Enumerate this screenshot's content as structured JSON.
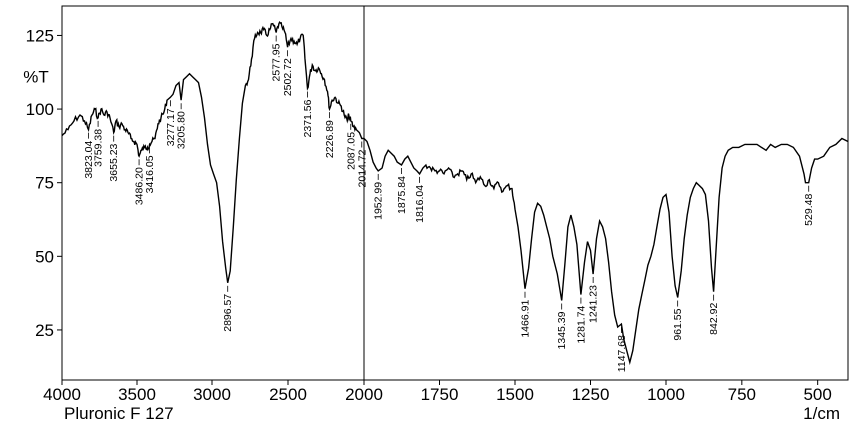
{
  "chart_data": {
    "type": "line",
    "title": "",
    "xlabel": "1/cm",
    "ylabel": "%T",
    "sample_label": "Pluronic F 127",
    "xlim": [
      4000,
      400
    ],
    "ylim": [
      8,
      135
    ],
    "x_ticks": [
      4000,
      3500,
      3000,
      2500,
      2000,
      1750,
      1500,
      1250,
      1000,
      750,
      500
    ],
    "x_tick_labels": [
      "4000",
      "3500",
      "3000",
      "2500",
      "2000",
      "1750",
      "1500",
      "1250",
      "1000",
      "750",
      "500"
    ],
    "y_ticks": [
      25,
      50,
      75,
      100,
      125
    ],
    "y_tick_labels": [
      "25",
      "50",
      "75",
      "100",
      "125"
    ],
    "divider_x": 2000,
    "line_color": "#000000",
    "series": [
      {
        "values_xy": [
          [
            4000,
            91
          ],
          [
            3960,
            93
          ],
          [
            3920,
            96
          ],
          [
            3880,
            98
          ],
          [
            3850,
            96
          ],
          [
            3823.04,
            93
          ],
          [
            3800,
            98
          ],
          [
            3780,
            100
          ],
          [
            3759.38,
            97
          ],
          [
            3740,
            100
          ],
          [
            3720,
            98
          ],
          [
            3700,
            99
          ],
          [
            3680,
            97
          ],
          [
            3655.23,
            92
          ],
          [
            3640,
            96
          ],
          [
            3620,
            94
          ],
          [
            3600,
            95
          ],
          [
            3580,
            93
          ],
          [
            3560,
            92
          ],
          [
            3540,
            90
          ],
          [
            3520,
            89
          ],
          [
            3500,
            88
          ],
          [
            3486.2,
            84
          ],
          [
            3470,
            86
          ],
          [
            3450,
            87
          ],
          [
            3430,
            87
          ],
          [
            3416.05,
            88
          ],
          [
            3400,
            89
          ],
          [
            3380,
            90
          ],
          [
            3360,
            95
          ],
          [
            3340,
            97
          ],
          [
            3320,
            99
          ],
          [
            3300,
            103
          ],
          [
            3277.17,
            104
          ],
          [
            3260,
            105
          ],
          [
            3240,
            108
          ],
          [
            3220,
            109
          ],
          [
            3205.8,
            103
          ],
          [
            3190,
            110
          ],
          [
            3170,
            111
          ],
          [
            3150,
            112
          ],
          [
            3130,
            111
          ],
          [
            3110,
            110
          ],
          [
            3090,
            109
          ],
          [
            3070,
            104
          ],
          [
            3050,
            97
          ],
          [
            3030,
            88
          ],
          [
            3010,
            81
          ],
          [
            2990,
            78
          ],
          [
            2970,
            75
          ],
          [
            2950,
            67
          ],
          [
            2930,
            55
          ],
          [
            2910,
            46
          ],
          [
            2896.57,
            41
          ],
          [
            2880,
            45
          ],
          [
            2860,
            60
          ],
          [
            2840,
            76
          ],
          [
            2820,
            90
          ],
          [
            2800,
            102
          ],
          [
            2780,
            108
          ],
          [
            2760,
            110
          ],
          [
            2740,
            117
          ],
          [
            2720,
            124
          ],
          [
            2700,
            126
          ],
          [
            2680,
            126
          ],
          [
            2660,
            127
          ],
          [
            2640,
            125
          ],
          [
            2620,
            127
          ],
          [
            2600,
            129
          ],
          [
            2577.95,
            126
          ],
          [
            2560,
            129
          ],
          [
            2540,
            128
          ],
          [
            2520,
            126
          ],
          [
            2502.72,
            121
          ],
          [
            2480,
            124
          ],
          [
            2460,
            123
          ],
          [
            2440,
            122
          ],
          [
            2420,
            124
          ],
          [
            2400,
            125
          ],
          [
            2385,
            115
          ],
          [
            2371.56,
            107
          ],
          [
            2355,
            112
          ],
          [
            2340,
            115
          ],
          [
            2320,
            113
          ],
          [
            2300,
            114
          ],
          [
            2280,
            112
          ],
          [
            2260,
            110
          ],
          [
            2240,
            106
          ],
          [
            2226.89,
            100
          ],
          [
            2210,
            103
          ],
          [
            2190,
            104
          ],
          [
            2170,
            102
          ],
          [
            2150,
            101
          ],
          [
            2130,
            98
          ],
          [
            2110,
            96
          ],
          [
            2100,
            98
          ],
          [
            2087.05,
            96
          ],
          [
            2070,
            94
          ],
          [
            2050,
            93
          ],
          [
            2030,
            92
          ],
          [
            2014.72,
            90
          ],
          [
            2000,
            90
          ],
          [
            1990,
            89
          ],
          [
            1980,
            86
          ],
          [
            1970,
            82
          ],
          [
            1960,
            80
          ],
          [
            1952.99,
            79
          ],
          [
            1940,
            80
          ],
          [
            1930,
            84
          ],
          [
            1920,
            86
          ],
          [
            1910,
            85
          ],
          [
            1900,
            84
          ],
          [
            1890,
            82
          ],
          [
            1875.84,
            81
          ],
          [
            1865,
            83
          ],
          [
            1855,
            84
          ],
          [
            1845,
            82
          ],
          [
            1835,
            80
          ],
          [
            1825,
            79
          ],
          [
            1816.04,
            78
          ],
          [
            1805,
            80
          ],
          [
            1795,
            81
          ],
          [
            1780,
            80
          ],
          [
            1765,
            79
          ],
          [
            1750,
            79
          ],
          [
            1735,
            78
          ],
          [
            1720,
            80
          ],
          [
            1705,
            77
          ],
          [
            1690,
            78
          ],
          [
            1675,
            79
          ],
          [
            1660,
            76
          ],
          [
            1645,
            78
          ],
          [
            1630,
            75
          ],
          [
            1615,
            77
          ],
          [
            1600,
            74
          ],
          [
            1585,
            76
          ],
          [
            1570,
            73
          ],
          [
            1555,
            75
          ],
          [
            1540,
            72
          ],
          [
            1525,
            74
          ],
          [
            1510,
            73
          ],
          [
            1500,
            66
          ],
          [
            1490,
            60
          ],
          [
            1480,
            52
          ],
          [
            1466.91,
            39
          ],
          [
            1455,
            46
          ],
          [
            1445,
            56
          ],
          [
            1435,
            65
          ],
          [
            1425,
            68
          ],
          [
            1415,
            67
          ],
          [
            1405,
            64
          ],
          [
            1395,
            60
          ],
          [
            1385,
            56
          ],
          [
            1375,
            50
          ],
          [
            1360,
            44
          ],
          [
            1345.39,
            35
          ],
          [
            1335,
            47
          ],
          [
            1325,
            60
          ],
          [
            1315,
            64
          ],
          [
            1305,
            60
          ],
          [
            1295,
            54
          ],
          [
            1281.74,
            37
          ],
          [
            1270,
            48
          ],
          [
            1260,
            55
          ],
          [
            1250,
            52
          ],
          [
            1241.23,
            44
          ],
          [
            1230,
            56
          ],
          [
            1220,
            62
          ],
          [
            1210,
            60
          ],
          [
            1200,
            56
          ],
          [
            1190,
            48
          ],
          [
            1180,
            38
          ],
          [
            1170,
            30
          ],
          [
            1160,
            26
          ],
          [
            1147.68,
            27
          ],
          [
            1140,
            22
          ],
          [
            1130,
            18
          ],
          [
            1120,
            14
          ],
          [
            1110,
            18
          ],
          [
            1100,
            25
          ],
          [
            1090,
            32
          ],
          [
            1080,
            37
          ],
          [
            1070,
            42
          ],
          [
            1060,
            47
          ],
          [
            1050,
            50
          ],
          [
            1040,
            54
          ],
          [
            1030,
            60
          ],
          [
            1020,
            66
          ],
          [
            1010,
            70
          ],
          [
            1000,
            71
          ],
          [
            990,
            65
          ],
          [
            980,
            50
          ],
          [
            970,
            40
          ],
          [
            961.55,
            36
          ],
          [
            950,
            45
          ],
          [
            940,
            56
          ],
          [
            930,
            64
          ],
          [
            920,
            70
          ],
          [
            910,
            73
          ],
          [
            900,
            75
          ],
          [
            890,
            74
          ],
          [
            880,
            73
          ],
          [
            870,
            71
          ],
          [
            860,
            62
          ],
          [
            850,
            46
          ],
          [
            842.92,
            38
          ],
          [
            835,
            52
          ],
          [
            825,
            70
          ],
          [
            815,
            80
          ],
          [
            805,
            84
          ],
          [
            795,
            86
          ],
          [
            780,
            87
          ],
          [
            760,
            87
          ],
          [
            740,
            88
          ],
          [
            720,
            88
          ],
          [
            700,
            88
          ],
          [
            685,
            87
          ],
          [
            670,
            86
          ],
          [
            655,
            88
          ],
          [
            640,
            87
          ],
          [
            620,
            88
          ],
          [
            600,
            88
          ],
          [
            580,
            87
          ],
          [
            560,
            84
          ],
          [
            545,
            78
          ],
          [
            540,
            75
          ],
          [
            529.48,
            75
          ],
          [
            520,
            80
          ],
          [
            510,
            83
          ],
          [
            500,
            83
          ],
          [
            480,
            84
          ],
          [
            460,
            87
          ],
          [
            440,
            88
          ],
          [
            420,
            90
          ],
          [
            400,
            89
          ]
        ]
      }
    ],
    "peak_labels": [
      {
        "x": 3823.04,
        "y": 93,
        "text": "3823.04"
      },
      {
        "x": 3759.38,
        "y": 97,
        "text": "3759.38"
      },
      {
        "x": 3655.23,
        "y": 92,
        "text": "3655.23"
      },
      {
        "x": 3486.2,
        "y": 84,
        "text": "3486.20"
      },
      {
        "x": 3416.05,
        "y": 88,
        "text": "3416.05"
      },
      {
        "x": 3277.17,
        "y": 104,
        "text": "3277.17"
      },
      {
        "x": 3205.8,
        "y": 103,
        "text": "3205.80"
      },
      {
        "x": 2896.57,
        "y": 41,
        "text": "2896.57"
      },
      {
        "x": 2577.95,
        "y": 126,
        "text": "2577.95"
      },
      {
        "x": 2502.72,
        "y": 121,
        "text": "2502.72"
      },
      {
        "x": 2371.56,
        "y": 107,
        "text": "2371.56"
      },
      {
        "x": 2226.89,
        "y": 100,
        "text": "2226.89"
      },
      {
        "x": 2087.05,
        "y": 96,
        "text": "2087.05"
      },
      {
        "x": 2014.72,
        "y": 90,
        "text": "2014.72"
      },
      {
        "x": 1952.99,
        "y": 79,
        "text": "1952.99"
      },
      {
        "x": 1875.84,
        "y": 81,
        "text": "1875.84"
      },
      {
        "x": 1816.04,
        "y": 78,
        "text": "1816.04"
      },
      {
        "x": 1466.91,
        "y": 39,
        "text": "1466.91"
      },
      {
        "x": 1345.39,
        "y": 35,
        "text": "1345.39"
      },
      {
        "x": 1281.74,
        "y": 37,
        "text": "1281.74"
      },
      {
        "x": 1241.23,
        "y": 44,
        "text": "1241.23"
      },
      {
        "x": 1147.68,
        "y": 27,
        "text": "1147.68"
      },
      {
        "x": 961.55,
        "y": 36,
        "text": "961.55"
      },
      {
        "x": 842.92,
        "y": 38,
        "text": "842.92"
      },
      {
        "x": 529.48,
        "y": 75,
        "text": "529.48"
      }
    ]
  }
}
